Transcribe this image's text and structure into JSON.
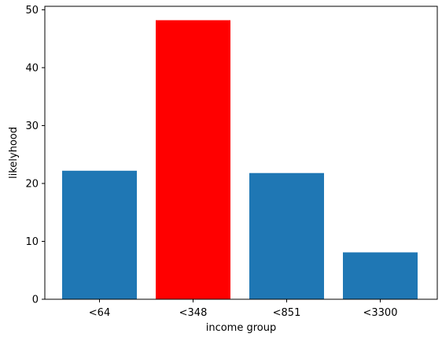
{
  "chart_data": {
    "type": "bar",
    "categories": [
      "<64",
      "<348",
      "<851",
      "<3300"
    ],
    "values": [
      22.2,
      48.2,
      21.8,
      8.1
    ],
    "bar_colors": [
      "#1f77b4",
      "#ff0000",
      "#1f77b4",
      "#1f77b4"
    ],
    "title": "",
    "xlabel": "income group",
    "ylabel": "likelyhood",
    "ylim": [
      0,
      50.6
    ],
    "yticks": [
      0,
      10,
      20,
      30,
      40,
      50
    ],
    "grid": false
  }
}
